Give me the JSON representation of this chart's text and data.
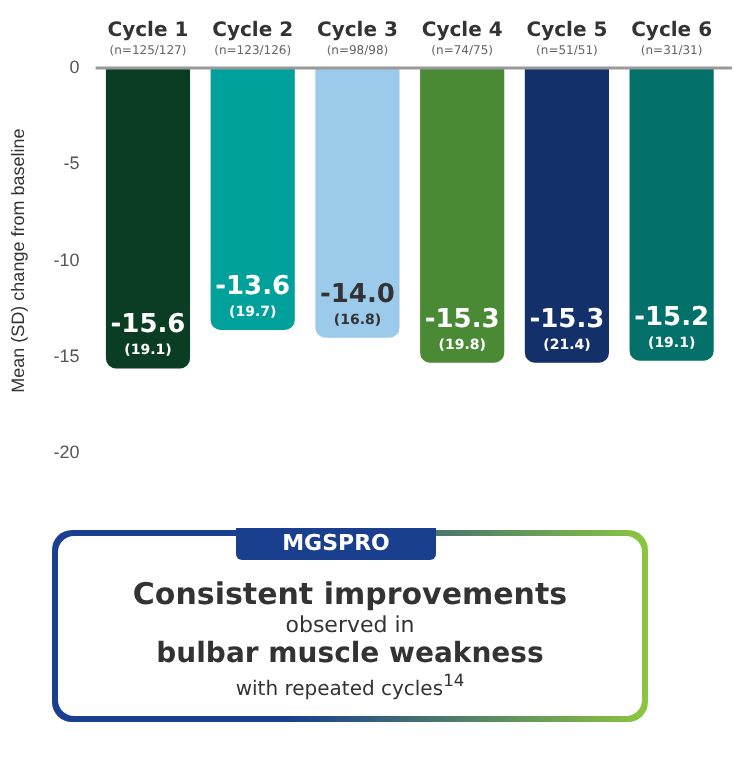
{
  "chart_data": {
    "type": "bar",
    "ylabel": "Mean (SD) change from baseline",
    "categories": [
      "Cycle 1\n(n=125/127)",
      "Cycle 2\n(n=123/126)",
      "Cycle 3\n(n=98/98)",
      "Cycle 4\n(n=74/75)",
      "Cycle 5\n(n=51/51)",
      "Cycle 6\n(n=31/31)"
    ],
    "values": [
      -15.6,
      -13.6,
      -14.0,
      -15.3,
      -15.3,
      -15.2
    ],
    "value_labels": [
      "-15.6\n(19.1)",
      "-13.6\n(19.7)",
      "-14.0\n(16.8)",
      "-15.3\n(19.8)",
      "-15.3\n(21.4)",
      "-15.2\n(19.1)"
    ],
    "colors": [
      "#0a3d24",
      "#00a19a",
      "#9ccaea",
      "#4a8a35",
      "#13306a",
      "#03716a"
    ],
    "ylim": [
      -20,
      0
    ],
    "yticks": [
      0,
      -5,
      -10,
      -15,
      -20
    ],
    "grid": false,
    "legend": false,
    "annotations": [
      "MGSPRO",
      "Consistent improvements",
      "observed in",
      "bulbar muscle weakness",
      "with repeated cycles$^{14}$"
    ]
  }
}
